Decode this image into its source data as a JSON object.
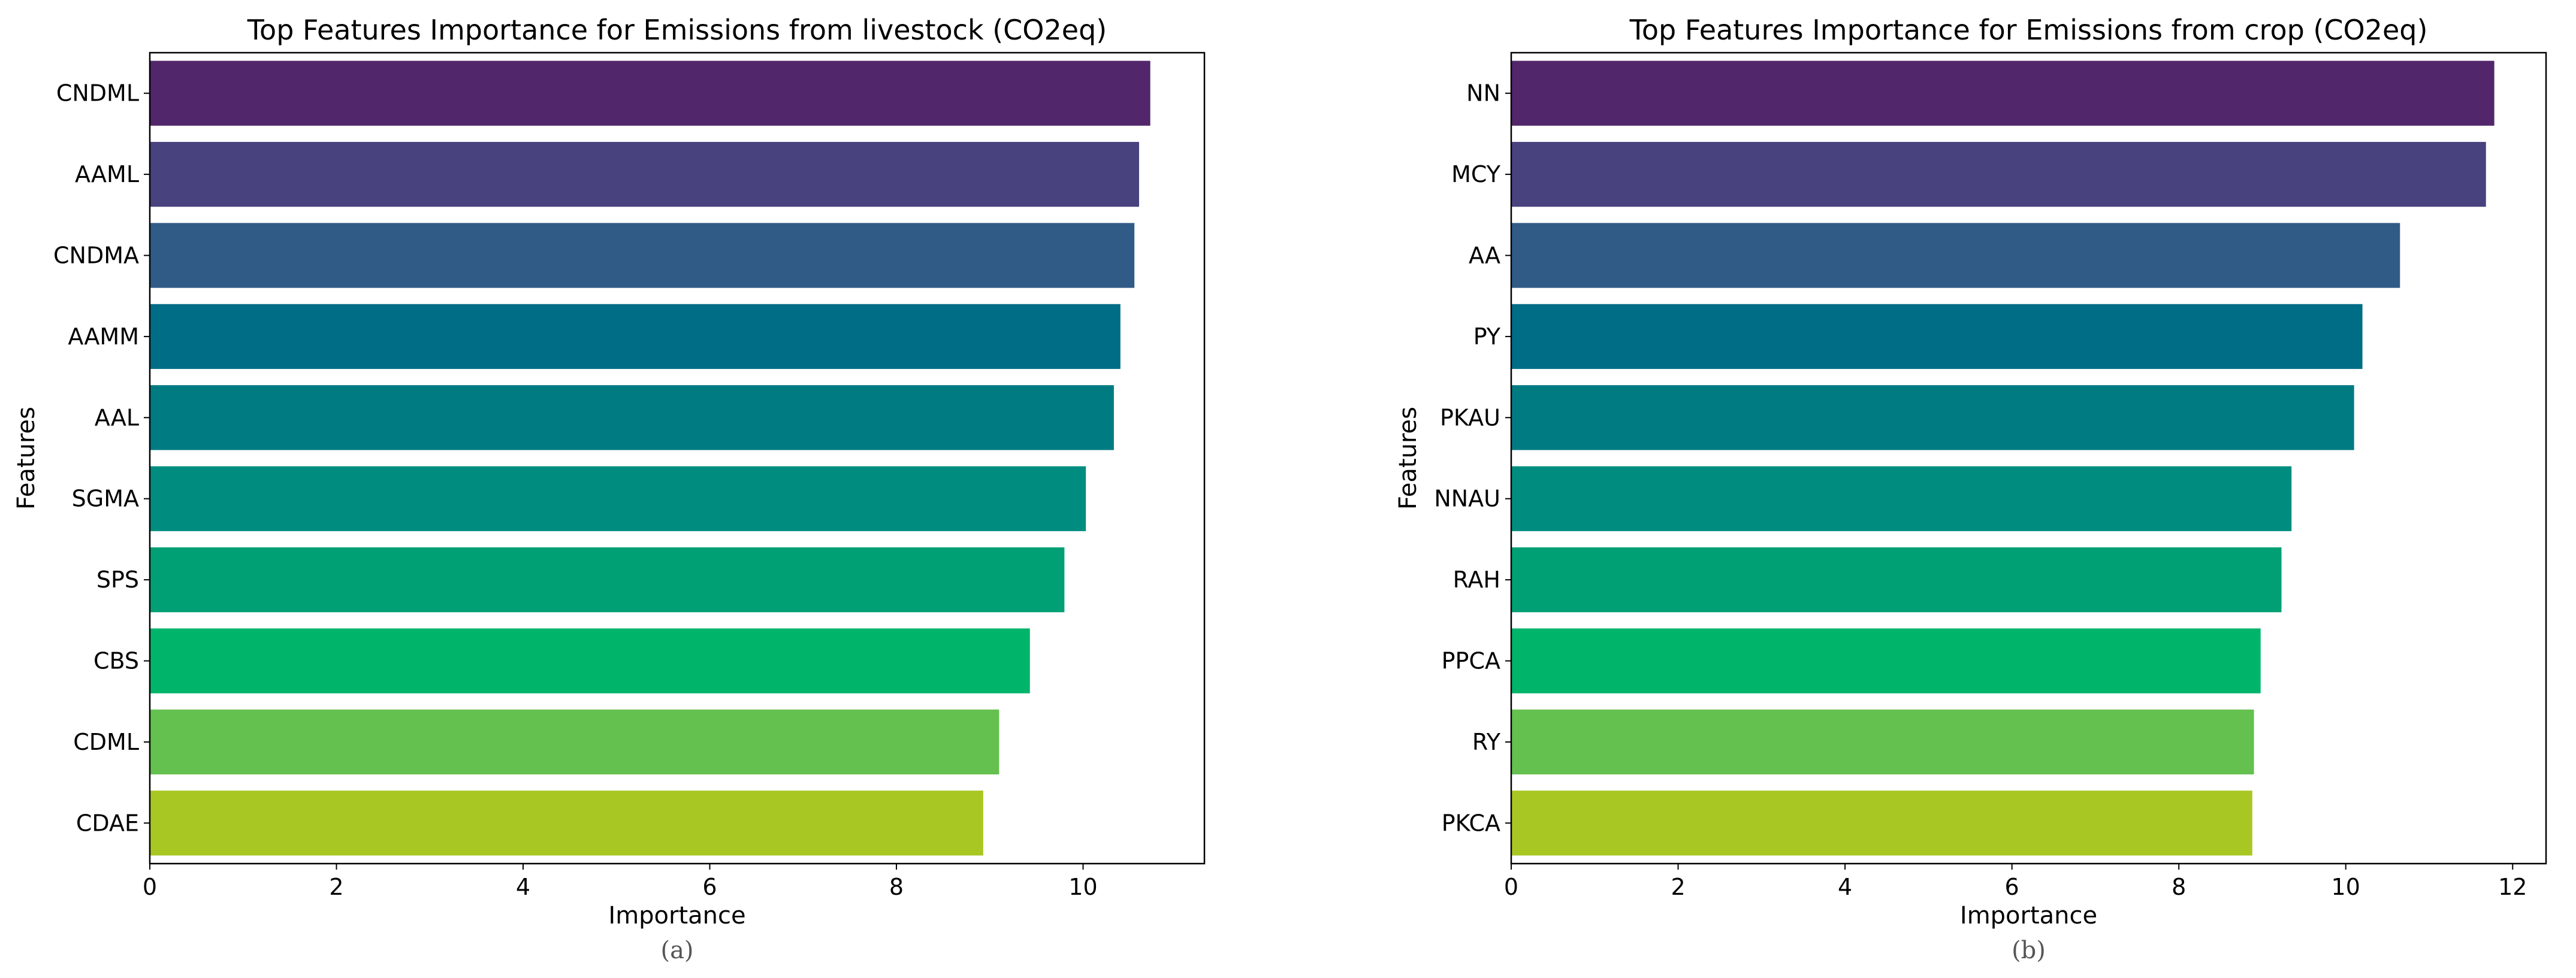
{
  "chart_data": [
    {
      "type": "bar",
      "orientation": "horizontal",
      "title": "Top Features Importance for Emissions from livestock (CO2eq)",
      "xlabel": "Importance",
      "ylabel": "Features",
      "panel_label": "(a)",
      "categories": [
        "CNDML",
        "AAML",
        "CNDMA",
        "AAMM",
        "AAL",
        "SGMA",
        "SPS",
        "CBS",
        "CDML",
        "CDAE"
      ],
      "values": [
        10.72,
        10.6,
        10.55,
        10.4,
        10.33,
        10.03,
        9.8,
        9.43,
        9.1,
        8.93
      ],
      "xlim": [
        0,
        11.3
      ],
      "xticks": [
        0,
        2,
        4,
        6,
        8,
        10
      ],
      "colors": [
        "#52266a",
        "#48427f",
        "#315b87",
        "#006d87",
        "#007b82",
        "#008d7f",
        "#00a074",
        "#00b46a",
        "#64c04f",
        "#a8c723"
      ],
      "grid": false
    },
    {
      "type": "bar",
      "orientation": "horizontal",
      "title": "Top Features Importance for Emissions from crop (CO2eq)",
      "xlabel": "Importance",
      "ylabel": "Features",
      "panel_label": "(b)",
      "categories": [
        "NN",
        "MCY",
        "AA",
        "PY",
        "PKAU",
        "NNAU",
        "RAH",
        "PPCA",
        "RY",
        "PKCA"
      ],
      "values": [
        11.78,
        11.68,
        10.65,
        10.2,
        10.1,
        9.35,
        9.23,
        8.98,
        8.9,
        8.88
      ],
      "xlim": [
        0,
        12.4
      ],
      "xticks": [
        0,
        2,
        4,
        6,
        8,
        10,
        12
      ],
      "colors": [
        "#52266a",
        "#48427f",
        "#315b87",
        "#006d87",
        "#007b82",
        "#008d7f",
        "#00a074",
        "#00b46a",
        "#64c04f",
        "#a8c723"
      ],
      "grid": false
    }
  ]
}
